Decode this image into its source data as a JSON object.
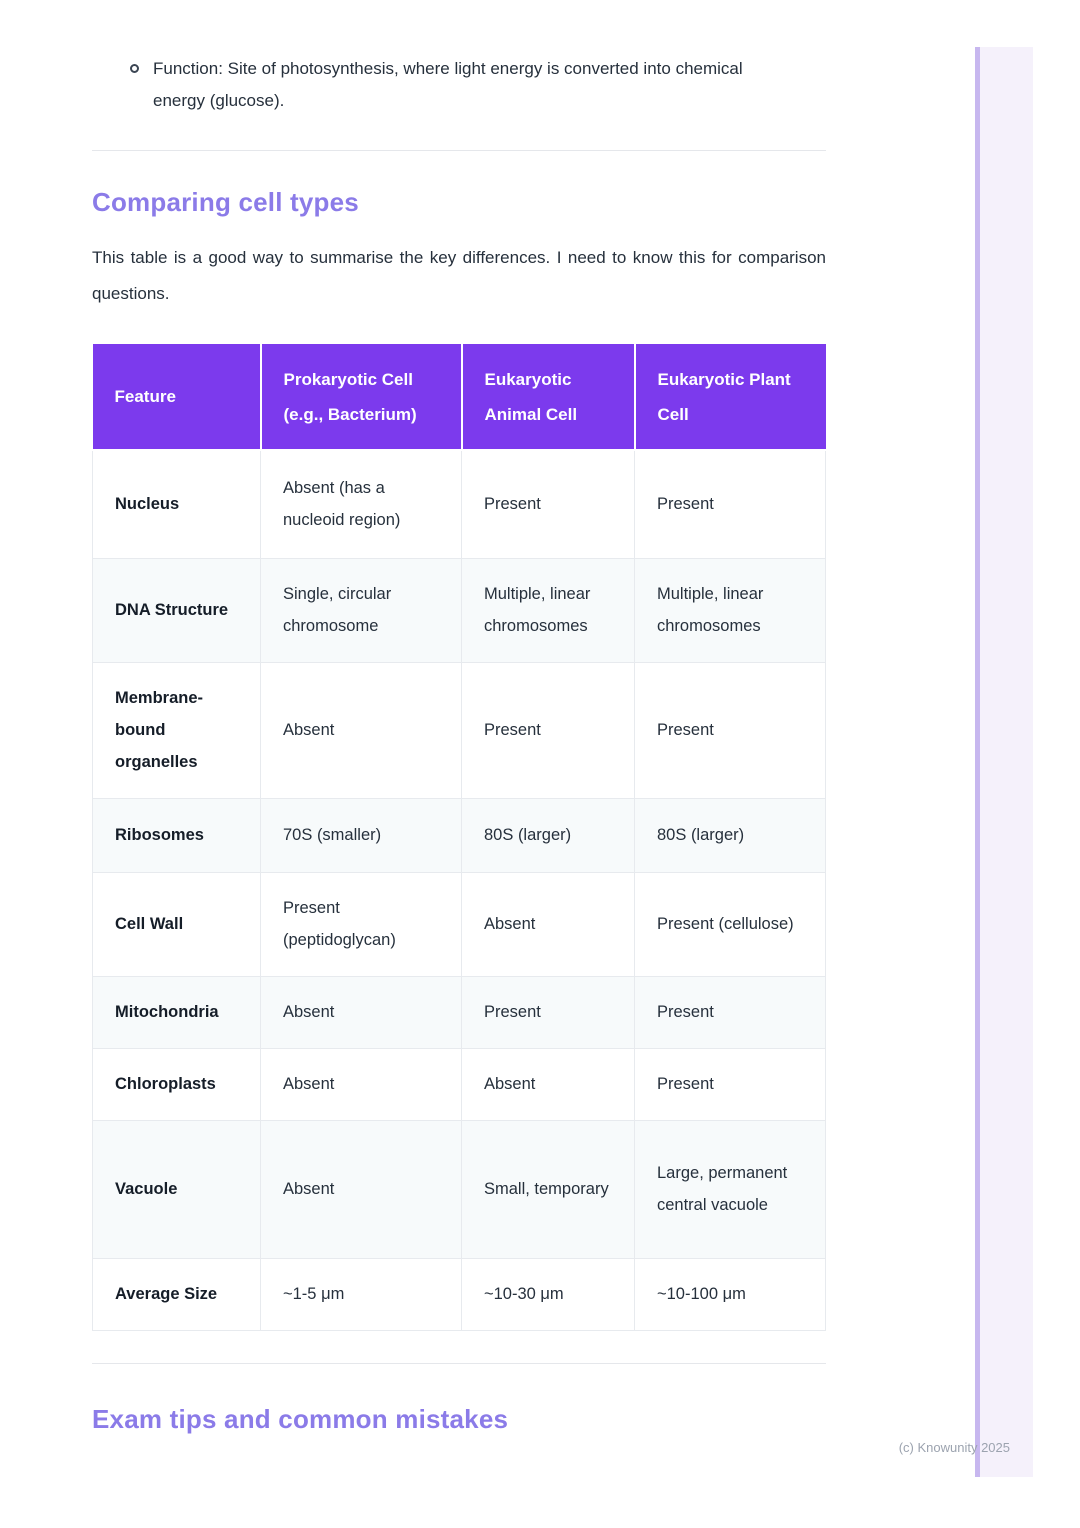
{
  "colors": {
    "table_header_purple": "#7C3AED",
    "heading_purple": "#8B7BE8",
    "stripe_line_purple": "#C7B7EF",
    "stripe_panel_lavender": "#F5F1FB",
    "shaded_row": "#F7FAFB"
  },
  "bullet_item": {
    "text": "Function: Site of photosynthesis, where light energy is converted into chemical energy (glucose)."
  },
  "comparing_section": {
    "heading": "Comparing cell types",
    "intro": "This table is a good way to summarise the key differences. I need to know this for comparison questions."
  },
  "table": {
    "headers": [
      "Feature",
      "Prokaryotic Cell (e.g., Bacterium)",
      "Eukaryotic Animal Cell",
      "Eukaryotic Plant Cell"
    ],
    "rows": [
      {
        "feature": "Nucleus",
        "cells": [
          "Absent (has a nucleoid region)",
          "Present",
          "Present"
        ]
      },
      {
        "feature": "DNA Structure",
        "cells": [
          "Single, circular chromosome",
          "Multiple, linear chromosomes",
          "Multiple, linear chromosomes"
        ]
      },
      {
        "feature": "Membrane-bound organelles",
        "cells": [
          "Absent",
          "Present",
          "Present"
        ]
      },
      {
        "feature": "Ribosomes",
        "cells": [
          "70S (smaller)",
          "80S (larger)",
          "80S (larger)"
        ]
      },
      {
        "feature": "Cell Wall",
        "cells": [
          "Present (peptidoglycan)",
          "Absent",
          "Present (cellulose)"
        ]
      },
      {
        "feature": "Mitochondria",
        "cells": [
          "Absent",
          "Present",
          "Present"
        ]
      },
      {
        "feature": "Chloroplasts",
        "cells": [
          "Absent",
          "Absent",
          "Present"
        ]
      },
      {
        "feature": "Vacuole",
        "cells": [
          "Absent",
          "Small, temporary",
          "Large, permanent central vacuole"
        ]
      },
      {
        "feature": "Average Size",
        "cells": [
          "~1-5 μm",
          "~10-30 μm",
          "~10-100 μm"
        ]
      }
    ]
  },
  "exam_section": {
    "heading": "Exam tips and common mistakes"
  },
  "footer": {
    "copyright": "(c) Knowunity 2025"
  }
}
